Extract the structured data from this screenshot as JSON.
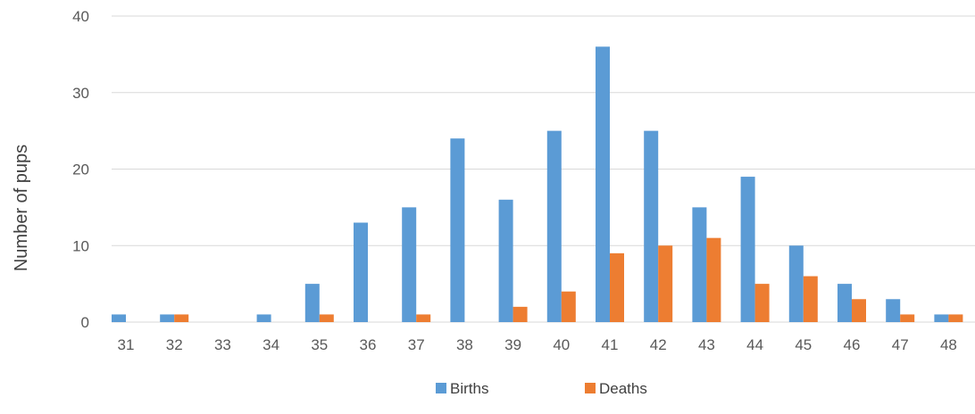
{
  "chart_data": {
    "type": "bar",
    "ylabel": "Number of pups",
    "xlabel": "",
    "ylim": [
      0,
      40
    ],
    "yticks": [
      0,
      10,
      20,
      30,
      40
    ],
    "grid": true,
    "legend_position": "bottom",
    "categories": [
      "31",
      "32",
      "33",
      "34",
      "35",
      "36",
      "37",
      "38",
      "39",
      "40",
      "41",
      "42",
      "43",
      "44",
      "45",
      "46",
      "47",
      "48"
    ],
    "series": [
      {
        "name": "Births",
        "color": "#5b9bd5",
        "values": [
          1,
          1,
          0,
          1,
          5,
          13,
          15,
          24,
          16,
          25,
          36,
          25,
          15,
          19,
          10,
          5,
          3,
          1
        ]
      },
      {
        "name": "Deaths",
        "color": "#ed7d31",
        "values": [
          0,
          1,
          0,
          0,
          1,
          0,
          1,
          0,
          2,
          4,
          9,
          10,
          11,
          5,
          6,
          3,
          1,
          1
        ]
      }
    ]
  }
}
